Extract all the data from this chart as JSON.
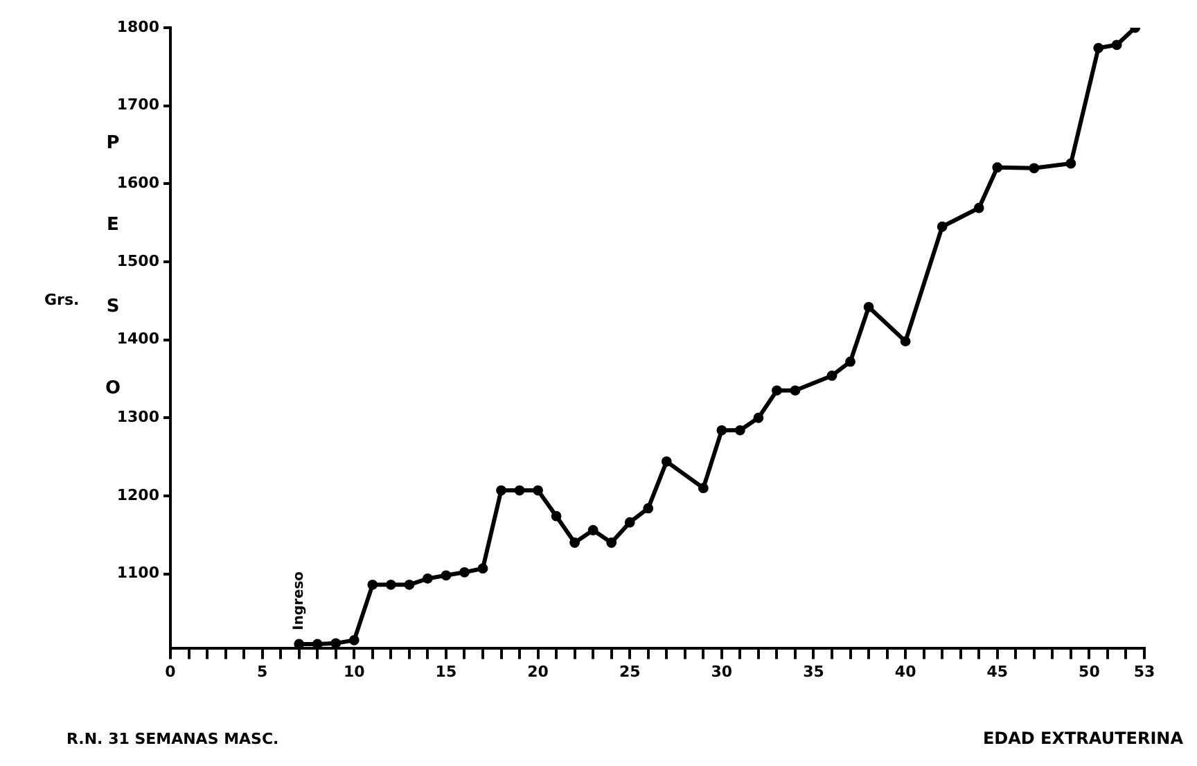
{
  "chart_data": {
    "type": "line",
    "ylabel": "PESO",
    "xlabel": "EDAD EXTRAUTERINA",
    "annotations": [
      {
        "text": "Ingreso",
        "x": 7,
        "y": 1010
      },
      "Grs.",
      "R.N. 31 SEMANAS MASC."
    ],
    "x": [
      7,
      8,
      9,
      10,
      11,
      12,
      13,
      14,
      15,
      16,
      17,
      18,
      19,
      20,
      21,
      22,
      23,
      24,
      25,
      26,
      27,
      29,
      30,
      31,
      32,
      33,
      34,
      36,
      37,
      38,
      40,
      42,
      44,
      45,
      47,
      49,
      50.5,
      51.5,
      52.5
    ],
    "series": [
      {
        "color": "#000000",
        "values": [
          1010,
          1010,
          1011,
          1015,
          1086,
          1086,
          1086,
          1094,
          1098,
          1102,
          1107,
          1207,
          1207,
          1207,
          1174,
          1140,
          1156,
          1140,
          1166,
          1184,
          1244,
          1210,
          1284,
          1284,
          1300,
          1335,
          1335,
          1354,
          1372,
          1442,
          1398,
          1545,
          1569,
          1621,
          1620,
          1626,
          1774,
          1778,
          1800
        ]
      }
    ],
    "xlim": [
      0,
      53
    ],
    "xticks": [
      0,
      {
        "value": 1,
        "label": null
      },
      {
        "value": 2,
        "label": null
      },
      {
        "value": 3,
        "label": null
      },
      {
        "value": 4,
        "label": null
      },
      5,
      {
        "value": 6,
        "label": null
      },
      {
        "value": 7,
        "label": null
      },
      {
        "value": 8,
        "label": null
      },
      {
        "value": 9,
        "label": null
      },
      10,
      {
        "value": 11,
        "label": null
      },
      {
        "value": 12,
        "label": null
      },
      {
        "value": 13,
        "label": null
      },
      {
        "value": 14,
        "label": null
      },
      15,
      {
        "value": 16,
        "label": null
      },
      {
        "value": 17,
        "label": null
      },
      {
        "value": 18,
        "label": null
      },
      {
        "value": 19,
        "label": null
      },
      20,
      {
        "value": 21,
        "label": null
      },
      {
        "value": 22,
        "label": null
      },
      {
        "value": 23,
        "label": null
      },
      {
        "value": 24,
        "label": null
      },
      25,
      {
        "value": 26,
        "label": null
      },
      {
        "value": 27,
        "label": null
      },
      {
        "value": 28,
        "label": null
      },
      {
        "value": 29,
        "label": null
      },
      30,
      {
        "value": 31,
        "label": null
      },
      {
        "value": 32,
        "label": null
      },
      {
        "value": 33,
        "label": null
      },
      {
        "value": 34,
        "label": null
      },
      35,
      {
        "value": 36,
        "label": null
      },
      {
        "value": 37,
        "label": null
      },
      {
        "value": 38,
        "label": null
      },
      {
        "value": 39,
        "label": null
      },
      40,
      {
        "value": 41,
        "label": null
      },
      {
        "value": 42,
        "label": null
      },
      {
        "value": 43,
        "label": null
      },
      {
        "value": 44,
        "label": null
      },
      45,
      {
        "value": 46,
        "label": null
      },
      {
        "value": 47,
        "label": null
      },
      {
        "value": 48,
        "label": null
      },
      {
        "value": 49,
        "label": null
      },
      50,
      {
        "value": 51,
        "label": null
      },
      {
        "value": 52,
        "label": null
      },
      53
    ],
    "ylim": [
      1005,
      1800
    ],
    "yticks": [
      1100,
      1200,
      1300,
      1400,
      1500,
      1600,
      1700,
      1800
    ],
    "grid": false,
    "legend": false,
    "marker": "circle",
    "line_style": "solid"
  }
}
